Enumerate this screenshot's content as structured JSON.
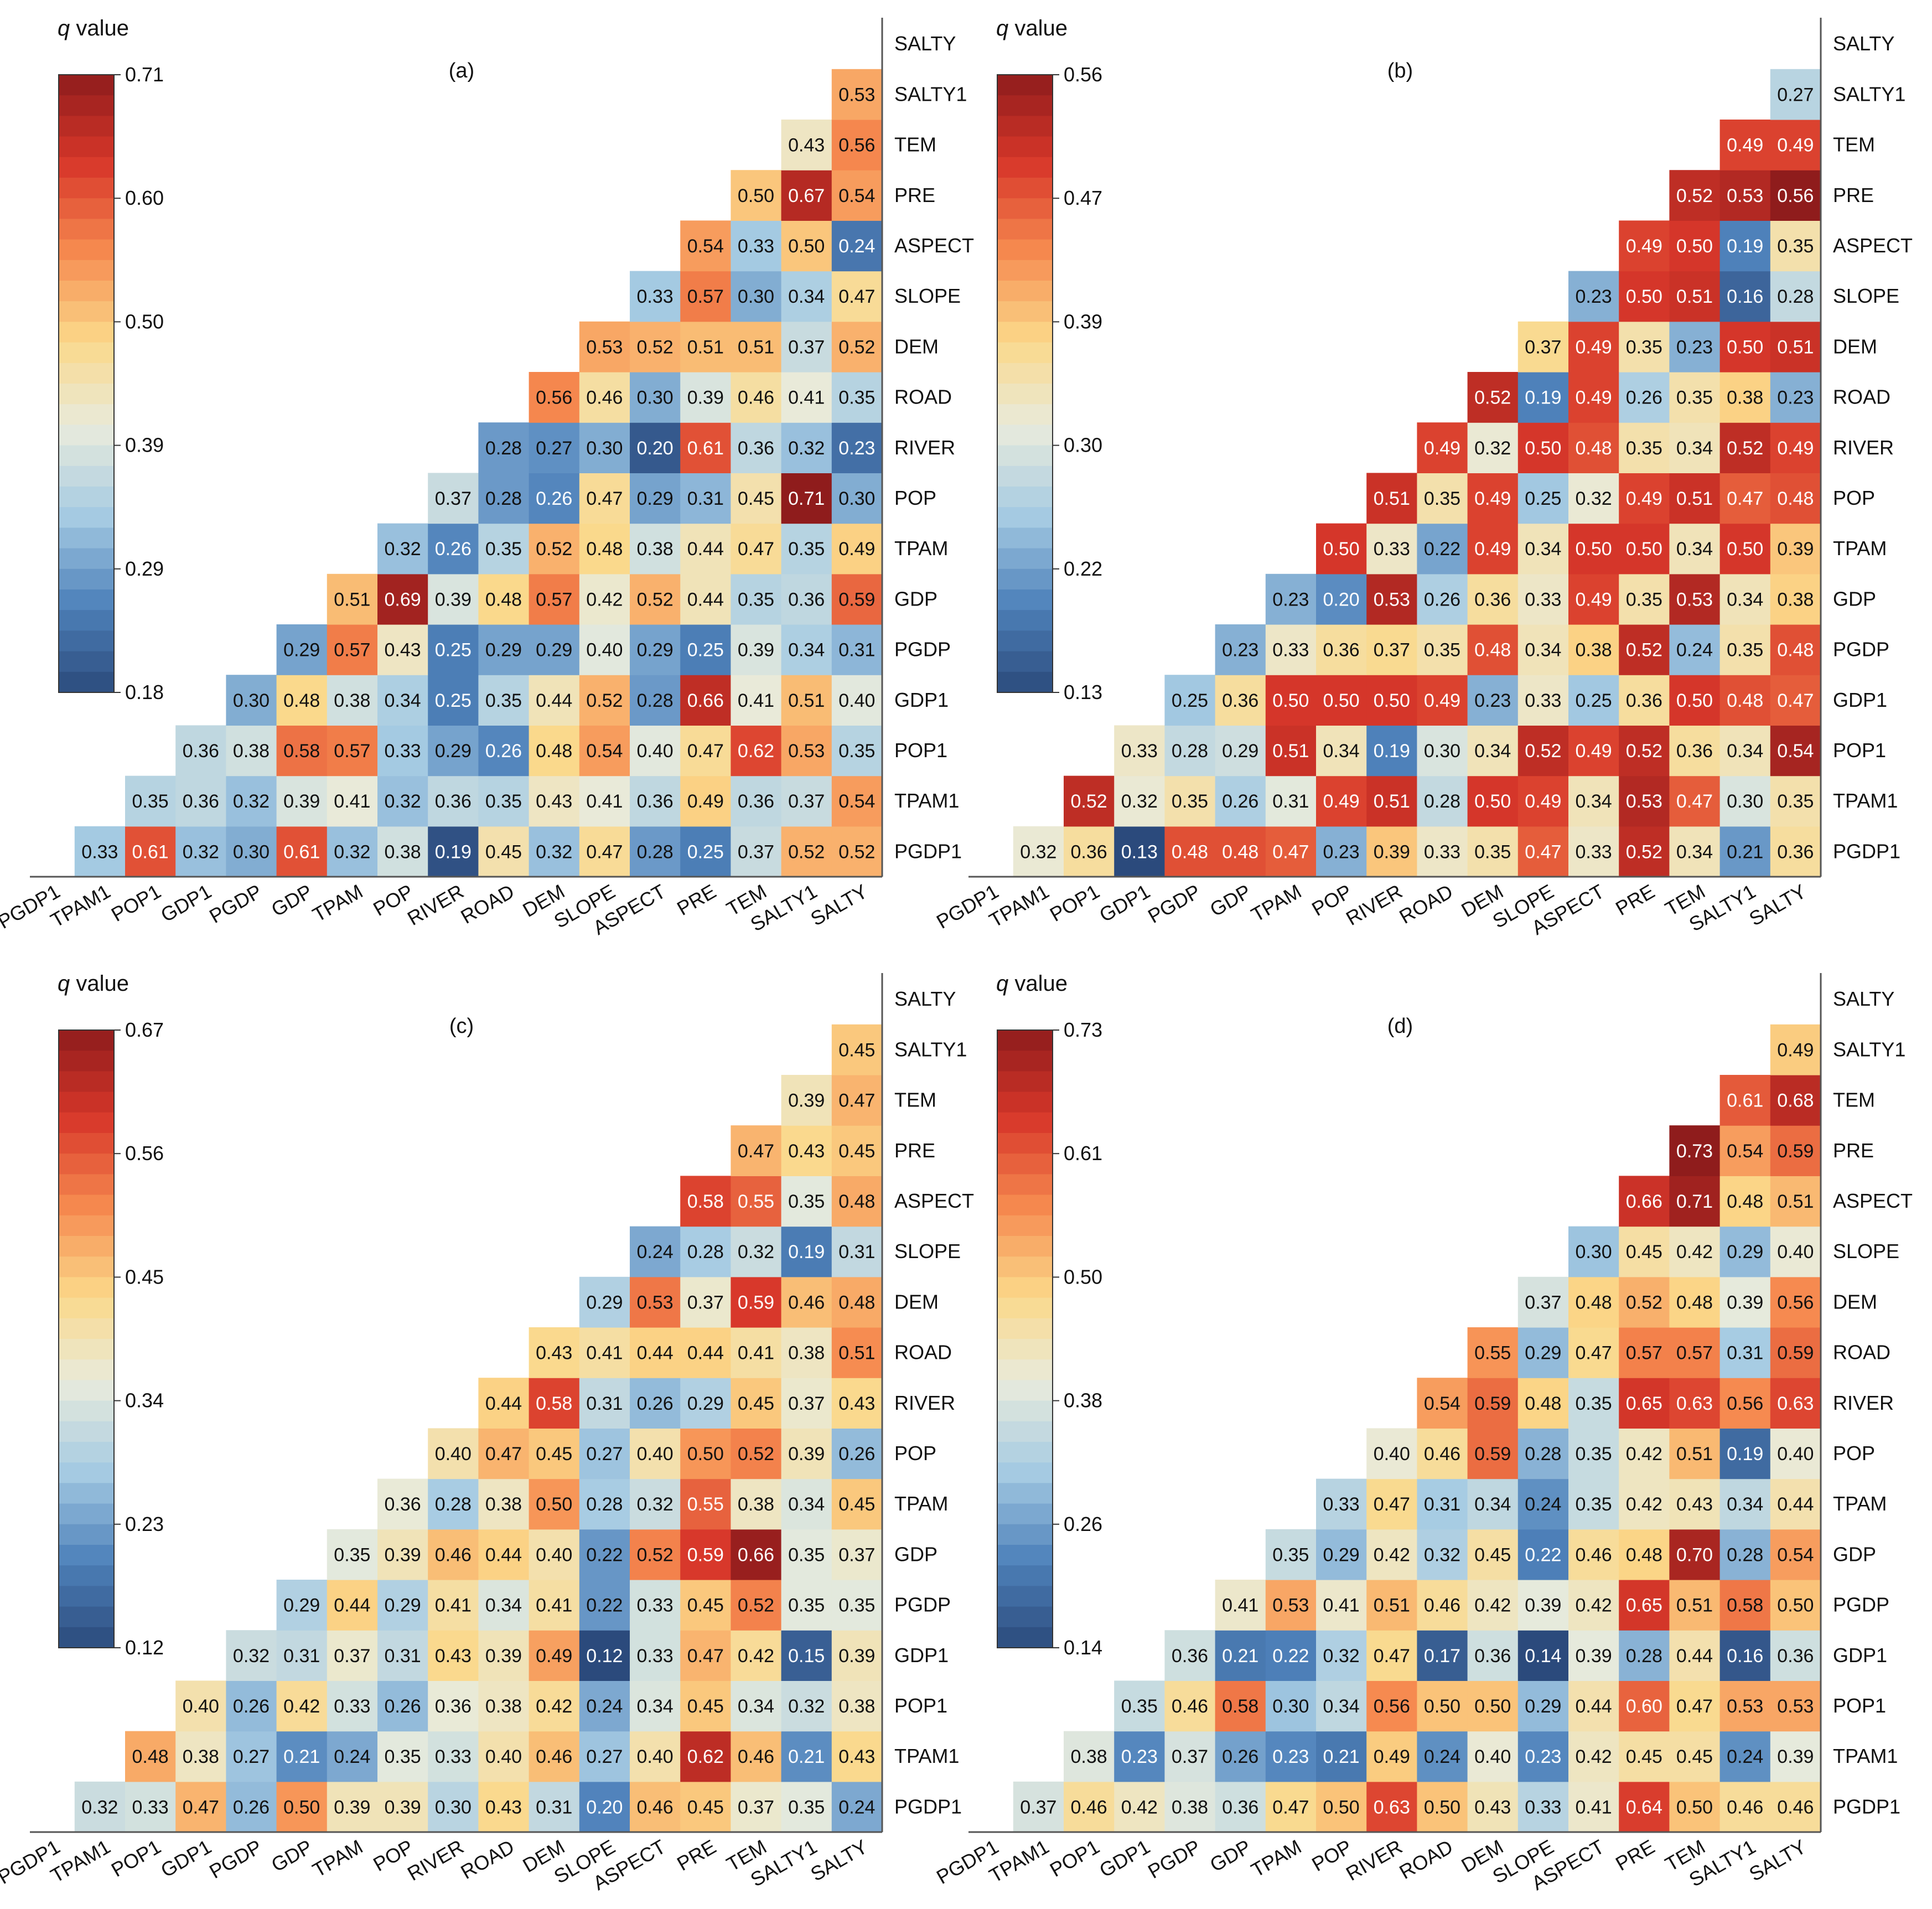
{
  "chart_data": {
    "type": "heatmap",
    "variables": [
      "PGDP1",
      "TPAM1",
      "POP1",
      "GDP1",
      "PGDP",
      "GDP",
      "TPAM",
      "POP",
      "RIVER",
      "ROAD",
      "DEM",
      "SLOPE",
      "ASPECT",
      "PRE",
      "TEM",
      "SALTY1",
      "SALTY"
    ],
    "colormap": [
      "#2b4a7c",
      "#4f82bb",
      "#a6cbe3",
      "#e8ebdc",
      "#fbd889",
      "#f6894f",
      "#d7372a",
      "#8f1c1c"
    ],
    "panels": [
      {
        "label": "(a)",
        "colorbar_title": "q value",
        "color_min": 0.18,
        "color_max": 0.71,
        "colorbar_ticks": [
          "0.71",
          "0.60",
          "0.50",
          "0.39",
          "0.29",
          "0.18"
        ],
        "values": [
          [
            0.33,
            0.61,
            0.32,
            0.3,
            0.61,
            0.32,
            0.38,
            0.19,
            0.45,
            0.32,
            0.47,
            0.28,
            0.25,
            0.37,
            0.52,
            0.52
          ],
          [
            0.35,
            0.36,
            0.32,
            0.39,
            0.41,
            0.32,
            0.36,
            0.35,
            0.43,
            0.41,
            0.36,
            0.49,
            0.36,
            0.37,
            0.54
          ],
          [
            0.36,
            0.38,
            0.58,
            0.57,
            0.33,
            0.29,
            0.26,
            0.48,
            0.54,
            0.4,
            0.47,
            0.62,
            0.53,
            0.35
          ],
          [
            0.3,
            0.48,
            0.38,
            0.34,
            0.25,
            0.35,
            0.44,
            0.52,
            0.28,
            0.66,
            0.41,
            0.51,
            0.4
          ],
          [
            0.29,
            0.57,
            0.43,
            0.25,
            0.29,
            0.29,
            0.4,
            0.29,
            0.25,
            0.39,
            0.34,
            0.31
          ],
          [
            0.51,
            0.69,
            0.39,
            0.48,
            0.57,
            0.42,
            0.52,
            0.44,
            0.35,
            0.36,
            0.59
          ],
          [
            0.32,
            0.26,
            0.35,
            0.52,
            0.48,
            0.38,
            0.44,
            0.47,
            0.35,
            0.49
          ],
          [
            0.37,
            0.28,
            0.26,
            0.47,
            0.29,
            0.31,
            0.45,
            0.71,
            0.3
          ],
          [
            0.28,
            0.27,
            0.3,
            0.2,
            0.61,
            0.36,
            0.32,
            0.23
          ],
          [
            0.56,
            0.46,
            0.3,
            0.39,
            0.46,
            0.41,
            0.35
          ],
          [
            0.53,
            0.52,
            0.51,
            0.51,
            0.37,
            0.52
          ],
          [
            0.33,
            0.57,
            0.3,
            0.34,
            0.47
          ],
          [
            0.54,
            0.33,
            0.5,
            0.24
          ],
          [
            0.5,
            0.67,
            0.54
          ],
          [
            0.43,
            0.56
          ],
          [
            0.53
          ]
        ]
      },
      {
        "label": "(b)",
        "colorbar_title": "q value",
        "color_min": 0.13,
        "color_max": 0.56,
        "colorbar_ticks": [
          "0.56",
          "0.47",
          "0.39",
          "0.30",
          "0.22",
          "0.13"
        ],
        "values": [
          [
            0.32,
            0.36,
            0.13,
            0.48,
            0.48,
            0.47,
            0.23,
            0.39,
            0.33,
            0.35,
            0.47,
            0.33,
            0.52,
            0.34,
            0.21,
            0.36
          ],
          [
            0.52,
            0.32,
            0.35,
            0.26,
            0.31,
            0.49,
            0.51,
            0.28,
            0.5,
            0.49,
            0.34,
            0.53,
            0.47,
            0.3,
            0.35
          ],
          [
            0.33,
            0.28,
            0.29,
            0.51,
            0.34,
            0.19,
            0.3,
            0.34,
            0.52,
            0.49,
            0.52,
            0.36,
            0.34,
            0.54
          ],
          [
            0.25,
            0.36,
            0.5,
            0.5,
            0.5,
            0.49,
            0.23,
            0.33,
            0.25,
            0.36,
            0.5,
            0.48,
            0.47
          ],
          [
            0.23,
            0.33,
            0.36,
            0.37,
            0.35,
            0.48,
            0.34,
            0.38,
            0.52,
            0.24,
            0.35,
            0.48
          ],
          [
            0.23,
            0.2,
            0.53,
            0.26,
            0.36,
            0.33,
            0.49,
            0.35,
            0.53,
            0.34,
            0.38
          ],
          [
            0.5,
            0.33,
            0.22,
            0.49,
            0.34,
            0.5,
            0.5,
            0.34,
            0.5,
            0.39
          ],
          [
            0.51,
            0.35,
            0.49,
            0.25,
            0.32,
            0.49,
            0.51,
            0.47,
            0.48
          ],
          [
            0.49,
            0.32,
            0.5,
            0.48,
            0.35,
            0.34,
            0.52,
            0.49
          ],
          [
            0.52,
            0.19,
            0.49,
            0.26,
            0.35,
            0.38,
            0.23
          ],
          [
            0.37,
            0.49,
            0.35,
            0.23,
            0.5,
            0.51
          ],
          [
            0.23,
            0.5,
            0.51,
            0.16,
            0.28
          ],
          [
            0.49,
            0.5,
            0.19,
            0.35
          ],
          [
            0.52,
            0.53,
            0.56
          ],
          [
            0.49,
            0.49
          ],
          [
            0.27
          ]
        ]
      },
      {
        "label": "(c)",
        "colorbar_title": "q value",
        "color_min": 0.12,
        "color_max": 0.67,
        "colorbar_ticks": [
          "0.67",
          "0.56",
          "0.45",
          "0.34",
          "0.23",
          "0.12"
        ],
        "values": [
          [
            0.32,
            0.33,
            0.47,
            0.26,
            0.5,
            0.39,
            0.39,
            0.3,
            0.43,
            0.31,
            0.2,
            0.46,
            0.45,
            0.37,
            0.35,
            0.24
          ],
          [
            0.48,
            0.38,
            0.27,
            0.21,
            0.24,
            0.35,
            0.33,
            0.4,
            0.46,
            0.27,
            0.4,
            0.62,
            0.46,
            0.21,
            0.43
          ],
          [
            0.4,
            0.26,
            0.42,
            0.33,
            0.26,
            0.36,
            0.38,
            0.42,
            0.24,
            0.34,
            0.45,
            0.34,
            0.32,
            0.38
          ],
          [
            0.32,
            0.31,
            0.37,
            0.31,
            0.43,
            0.39,
            0.49,
            0.12,
            0.33,
            0.47,
            0.42,
            0.15,
            0.39
          ],
          [
            0.29,
            0.44,
            0.29,
            0.41,
            0.34,
            0.41,
            0.22,
            0.33,
            0.45,
            0.52,
            0.35,
            0.35
          ],
          [
            0.35,
            0.39,
            0.46,
            0.44,
            0.4,
            0.22,
            0.52,
            0.59,
            0.66,
            0.35,
            0.37
          ],
          [
            0.36,
            0.28,
            0.38,
            0.5,
            0.28,
            0.32,
            0.55,
            0.38,
            0.34,
            0.45
          ],
          [
            0.4,
            0.47,
            0.45,
            0.27,
            0.4,
            0.5,
            0.52,
            0.39,
            0.26
          ],
          [
            0.44,
            0.58,
            0.31,
            0.26,
            0.29,
            0.45,
            0.37,
            0.43
          ],
          [
            0.43,
            0.41,
            0.44,
            0.44,
            0.41,
            0.38,
            0.51
          ],
          [
            0.29,
            0.53,
            0.37,
            0.59,
            0.46,
            0.48
          ],
          [
            0.24,
            0.28,
            0.32,
            0.19,
            0.31
          ],
          [
            0.58,
            0.55,
            0.35,
            0.48
          ],
          [
            0.47,
            0.43,
            0.45
          ],
          [
            0.39,
            0.47
          ],
          [
            0.45
          ]
        ]
      },
      {
        "label": "(d)",
        "colorbar_title": "q value",
        "color_min": 0.14,
        "color_max": 0.73,
        "colorbar_ticks": [
          "0.73",
          "0.61",
          "0.50",
          "0.38",
          "0.26",
          "0.14"
        ],
        "values": [
          [
            0.37,
            0.46,
            0.42,
            0.38,
            0.36,
            0.47,
            0.5,
            0.63,
            0.5,
            0.43,
            0.33,
            0.41,
            0.64,
            0.5,
            0.46,
            0.46
          ],
          [
            0.38,
            0.23,
            0.37,
            0.26,
            0.23,
            0.21,
            0.49,
            0.24,
            0.4,
            0.23,
            0.42,
            0.45,
            0.45,
            0.24,
            0.39
          ],
          [
            0.35,
            0.46,
            0.58,
            0.3,
            0.34,
            0.56,
            0.5,
            0.5,
            0.29,
            0.44,
            0.6,
            0.47,
            0.53,
            0.53
          ],
          [
            0.36,
            0.21,
            0.22,
            0.32,
            0.47,
            0.17,
            0.36,
            0.14,
            0.39,
            0.28,
            0.44,
            0.16,
            0.36
          ],
          [
            0.41,
            0.53,
            0.41,
            0.51,
            0.46,
            0.42,
            0.39,
            0.42,
            0.65,
            0.51,
            0.58,
            0.5
          ],
          [
            0.35,
            0.29,
            0.42,
            0.32,
            0.45,
            0.22,
            0.46,
            0.48,
            0.7,
            0.28,
            0.54
          ],
          [
            0.33,
            0.47,
            0.31,
            0.34,
            0.24,
            0.35,
            0.42,
            0.43,
            0.34,
            0.44
          ],
          [
            0.4,
            0.46,
            0.59,
            0.28,
            0.35,
            0.42,
            0.51,
            0.19,
            0.4
          ],
          [
            0.54,
            0.59,
            0.48,
            0.35,
            0.65,
            0.63,
            0.56,
            0.63
          ],
          [
            0.55,
            0.29,
            0.47,
            0.57,
            0.57,
            0.31,
            0.59
          ],
          [
            0.37,
            0.48,
            0.52,
            0.48,
            0.39,
            0.56
          ],
          [
            0.3,
            0.45,
            0.42,
            0.29,
            0.4
          ],
          [
            0.66,
            0.71,
            0.48,
            0.51
          ],
          [
            0.73,
            0.54,
            0.59
          ],
          [
            0.61,
            0.68
          ],
          [
            0.49
          ]
        ]
      }
    ]
  }
}
